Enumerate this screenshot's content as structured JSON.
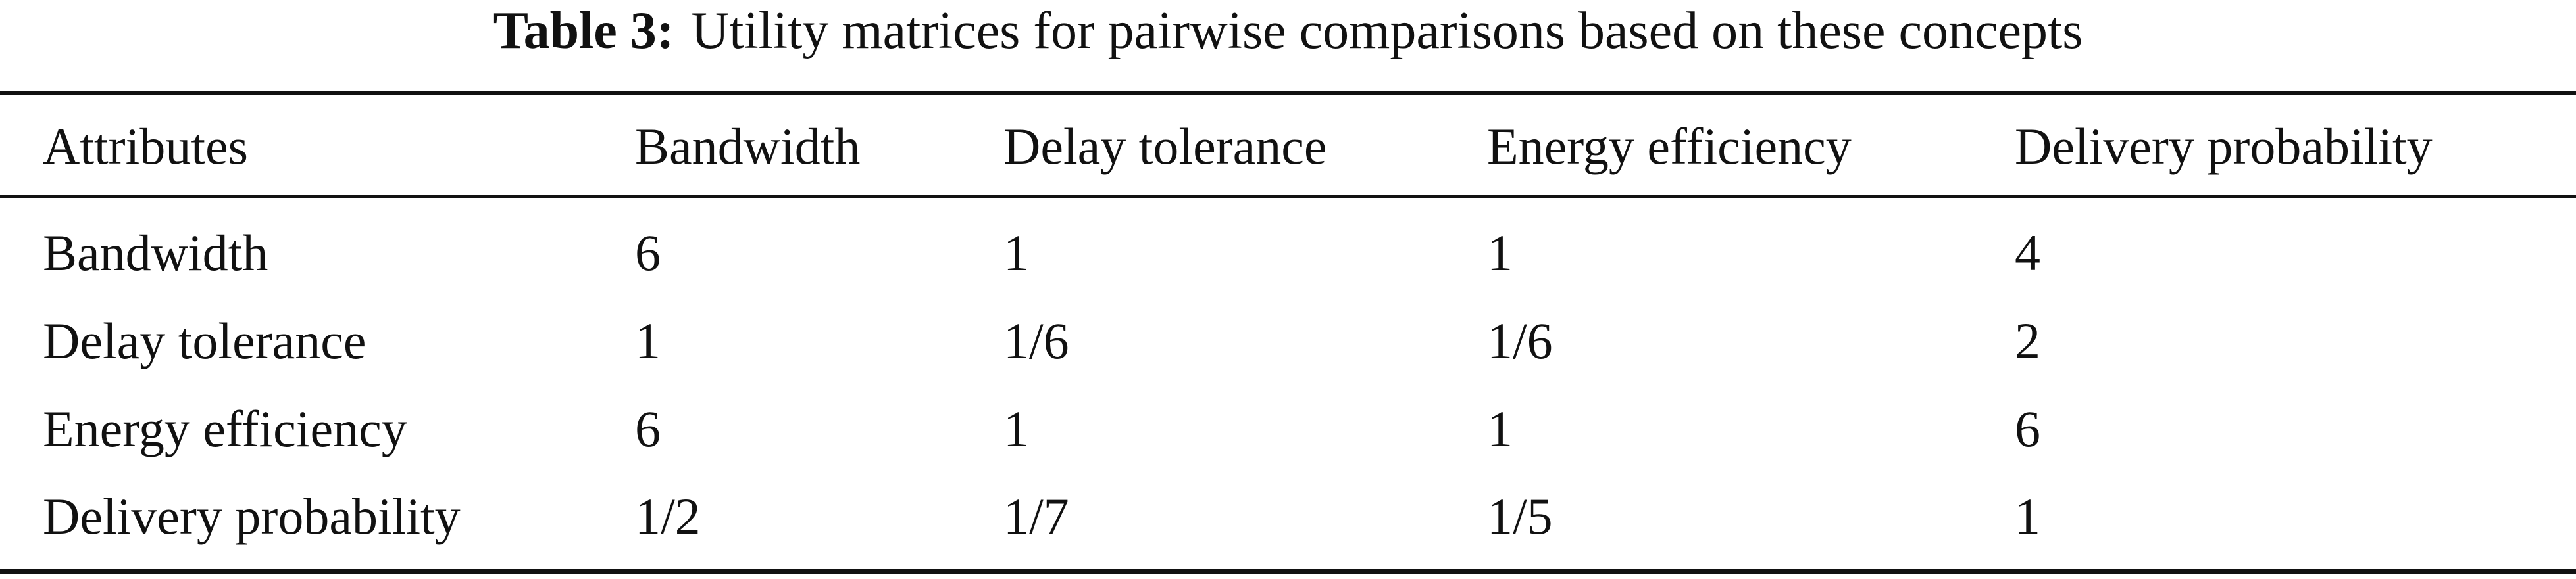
{
  "caption": {
    "label": "Table 3:",
    "text": "Utility matrices for pairwise comparisons based on these concepts"
  },
  "table": {
    "headers": [
      "Attributes",
      "Bandwidth",
      "Delay tolerance",
      "Energy efficiency",
      "Delivery probability"
    ],
    "rows": [
      [
        "Bandwidth",
        "6",
        "1",
        "1",
        "4"
      ],
      [
        "Delay tolerance",
        "1",
        "1/6",
        "1/6",
        "2"
      ],
      [
        "Energy efficiency",
        "6",
        "1",
        "1",
        "6"
      ],
      [
        "Delivery probability",
        "1/2",
        "1/7",
        "1/5",
        "1"
      ]
    ]
  }
}
